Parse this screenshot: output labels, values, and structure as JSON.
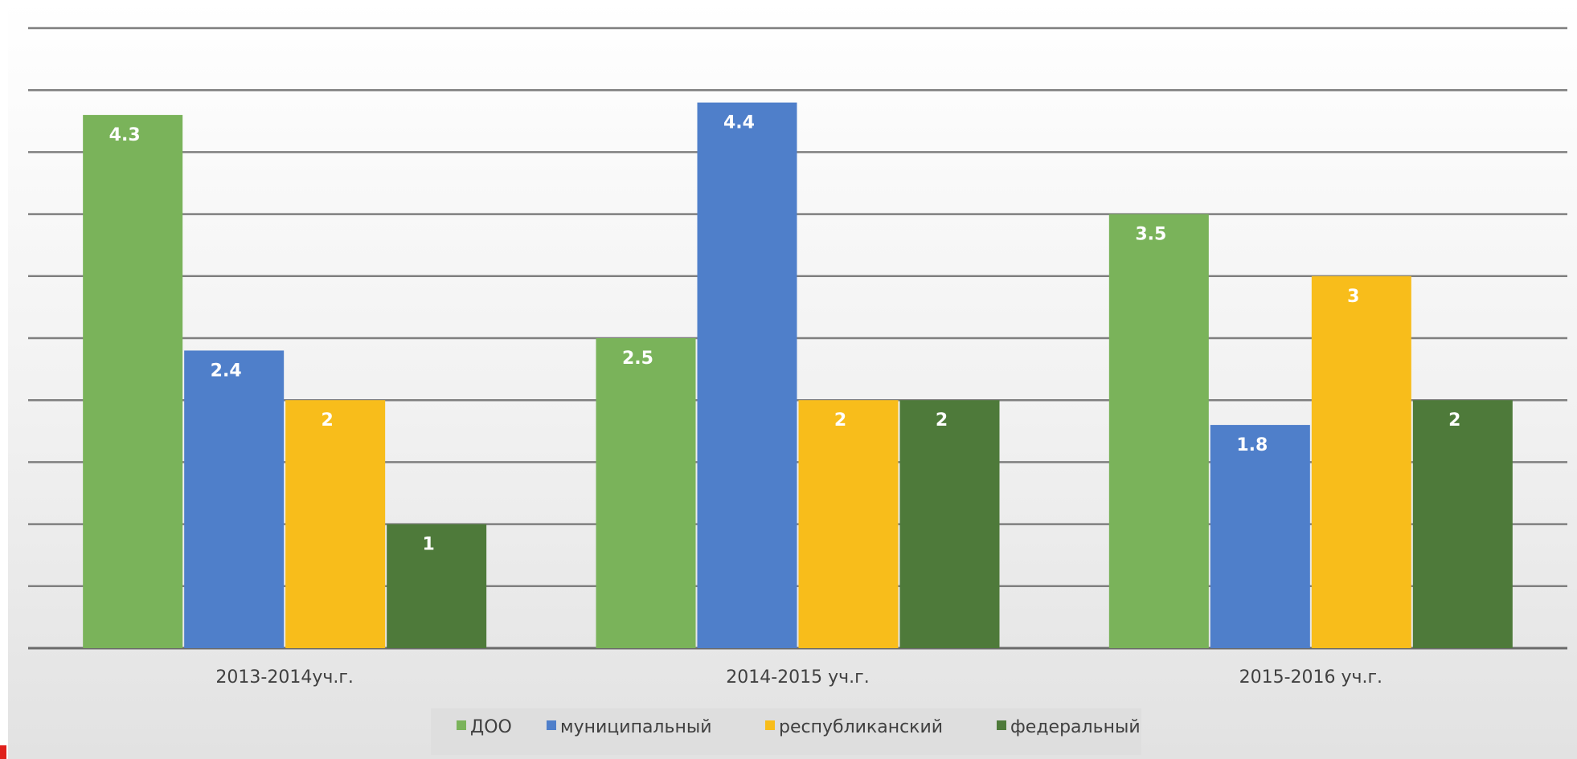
{
  "chart_data": {
    "type": "bar",
    "title": "",
    "xlabel": "",
    "ylabel": "",
    "categories": [
      "2013-2014уч.г.",
      "2014-2015 уч.г.",
      "2015-2016 уч.г."
    ],
    "series": [
      {
        "name": "ДОО",
        "color": "#7ab35a",
        "values": [
          4.3,
          2.5,
          3.5
        ]
      },
      {
        "name": "муниципальный",
        "color": "#4f7fca",
        "values": [
          2.4,
          4.4,
          1.8
        ]
      },
      {
        "name": "республиканский",
        "color": "#f8bd1b",
        "values": [
          2,
          2,
          3
        ]
      },
      {
        "name": "федеральный",
        "color": "#4e7a3a",
        "values": [
          1,
          2,
          2
        ]
      }
    ],
    "ylim": [
      0,
      5
    ],
    "grid": true,
    "legend_position": "bottom-center",
    "data_labels": true,
    "y_tick_labels_shown": false
  }
}
